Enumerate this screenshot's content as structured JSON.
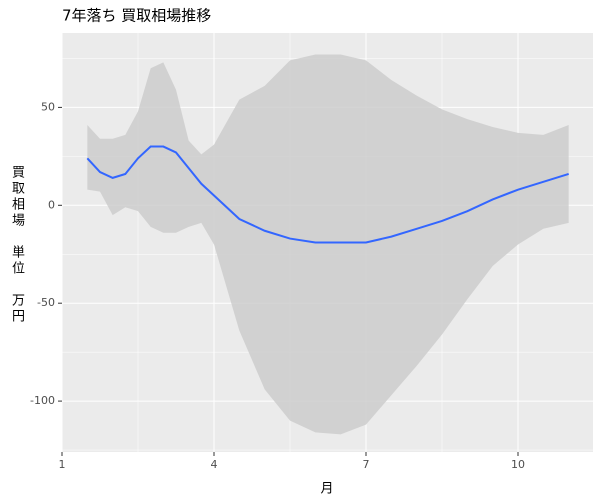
{
  "chart_data": {
    "type": "smooth",
    "title": "7年落ち 買取相場推移",
    "x_label": "月",
    "y_label": "買取相場　単位　万円",
    "x": [
      1.5,
      1.75,
      2,
      2.25,
      2.5,
      2.75,
      3,
      3.25,
      3.5,
      3.75,
      4,
      4.5,
      5,
      5.5,
      6,
      6.5,
      7,
      7.5,
      8,
      8.5,
      9,
      9.5,
      10,
      10.5,
      11
    ],
    "fit": {
      "color": "#3366ff",
      "values": [
        24,
        17,
        14,
        16,
        24,
        30,
        30,
        27,
        19,
        11,
        5,
        -7,
        -13,
        -17,
        -19,
        -19,
        -19,
        -16,
        -12,
        -8,
        -3,
        3,
        8,
        12,
        16
      ]
    },
    "band": {
      "color": "#cccccc",
      "upper": [
        41,
        34,
        34,
        36,
        48,
        70,
        73,
        59,
        33,
        26,
        31,
        54,
        61,
        74,
        77,
        77,
        74,
        64,
        56,
        49,
        44,
        40,
        37,
        36,
        41
      ],
      "lower": [
        8,
        7,
        -5,
        -1,
        -3,
        -11,
        -14,
        -14,
        -11,
        -9,
        -20,
        -64,
        -94,
        -110,
        -116,
        -117,
        -112,
        -97,
        -82,
        -66,
        -48,
        -31,
        -20,
        -12,
        -9
      ]
    },
    "xlim": [
      1,
      11.48
    ],
    "xticks": [
      1,
      4,
      7,
      10
    ],
    "ylim": [
      -126,
      88
    ],
    "yticks": [
      -100,
      -50,
      0,
      50
    ],
    "grid": true
  }
}
